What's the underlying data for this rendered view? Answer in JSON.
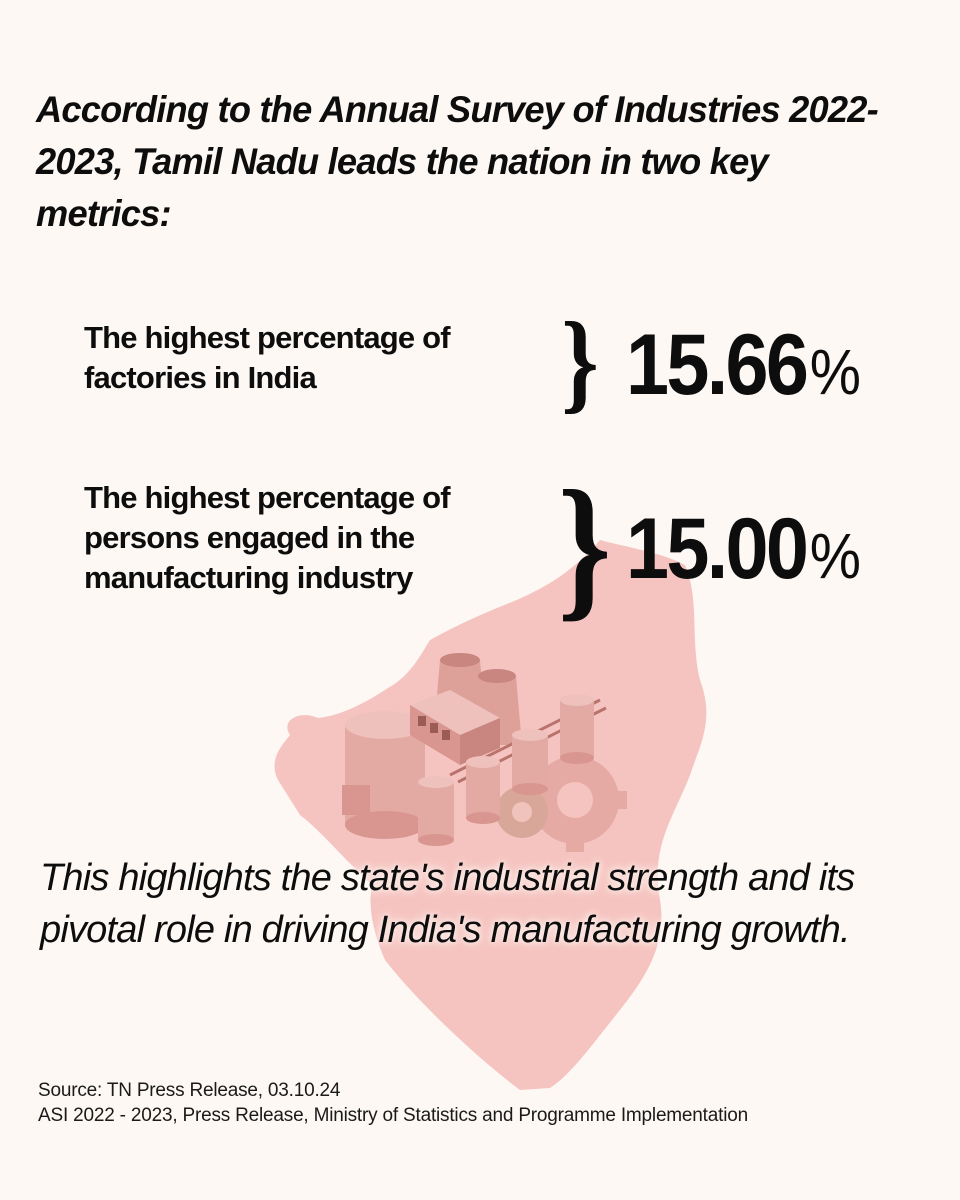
{
  "intro": "According to the Annual Survey of Industries 2022-2023, Tamil Nadu leads the nation in two key metrics:",
  "stats": [
    {
      "label": "The highest percentage of factories in India",
      "value": "15.66",
      "unit": "%"
    },
    {
      "label": "The highest percentage of persons engaged in the manufacturing industry",
      "value": "15.00",
      "unit": "%"
    }
  ],
  "conclusion": "This highlights the state's industrial strength and its pivotal role in driving India's manufacturing growth.",
  "sources": [
    "Source: TN Press Release, 03.10.24",
    "ASI 2022 - 2023, Press Release, Ministry of Statistics and Programme Implementation"
  ],
  "colors": {
    "background": "#fdf8f3",
    "text": "#0d0d0d",
    "map": "#f6c4c0",
    "factory": "#d9958f"
  },
  "illustration": {
    "map": "tamil-nadu-map",
    "foreground": "factory-illustration"
  }
}
